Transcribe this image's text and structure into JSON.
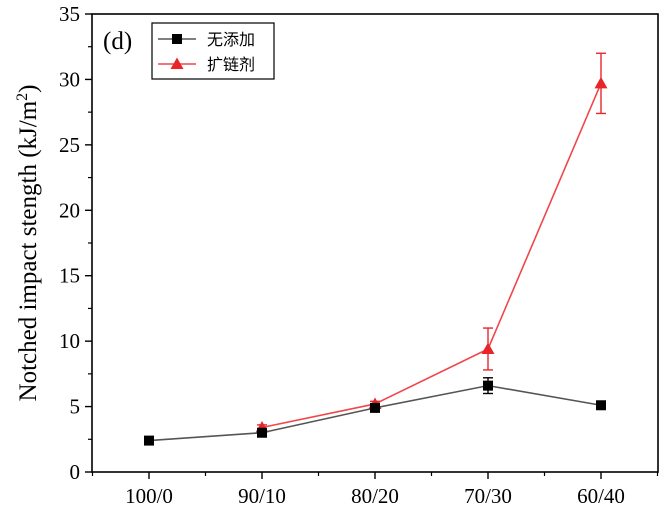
{
  "chart_data": {
    "type": "line",
    "panel_label": "(d)",
    "title": "",
    "xlabel": "",
    "ylabel": "Notched impact stength (kJ/m²)",
    "ylabel_parts": {
      "main": "Notched impact stength (kJ/m",
      "sup": "2",
      "close": ")"
    },
    "categories": [
      "100/0",
      "90/10",
      "80/20",
      "70/30",
      "60/40"
    ],
    "yticks": [
      0,
      5,
      10,
      15,
      20,
      25,
      30,
      35
    ],
    "ylim": [
      0,
      35
    ],
    "grid": false,
    "legend_position": "top-left",
    "series": [
      {
        "name": "无添加",
        "color": "#000000",
        "line_color": "#555555",
        "marker": "square",
        "values": [
          2.4,
          3.0,
          4.9,
          6.6,
          5.1
        ],
        "errors": [
          0.15,
          0.15,
          0.2,
          0.6,
          0.3
        ]
      },
      {
        "name": "扩链剂",
        "color": "#e8262a",
        "line_color": "#f0474b",
        "marker": "triangle",
        "values": [
          null,
          3.4,
          5.2,
          9.4,
          29.7
        ],
        "errors": [
          null,
          0.2,
          0.2,
          1.6,
          2.3
        ]
      }
    ]
  }
}
